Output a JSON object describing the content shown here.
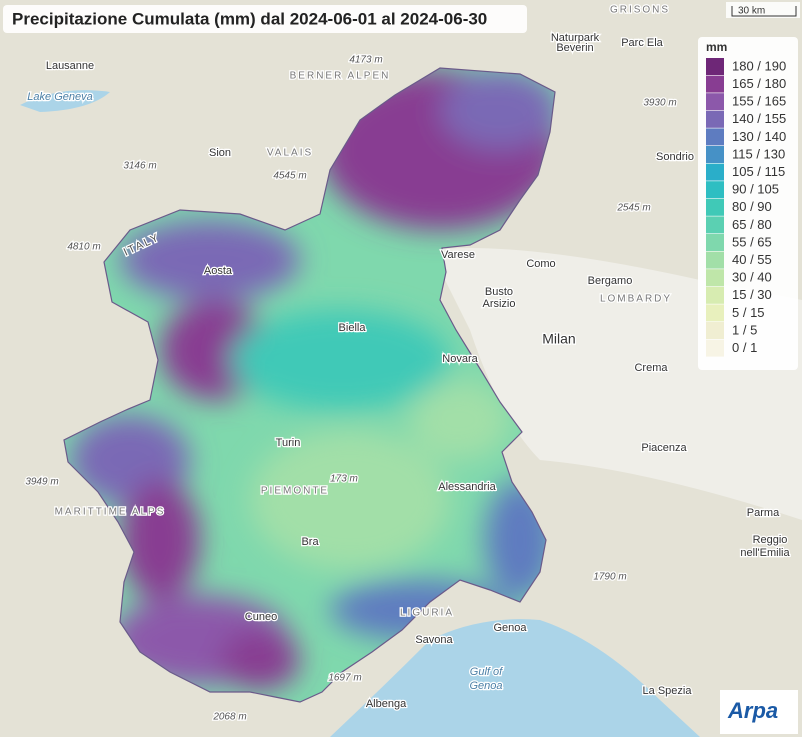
{
  "header": {
    "title": "Precipitazione Cumulata (mm) dal 2024-06-01 al 2024-06-30"
  },
  "scale": {
    "label": "30 km"
  },
  "legend": {
    "title": "mm",
    "items": [
      {
        "label": "180 / 190",
        "color": "#6e2777"
      },
      {
        "label": "165 / 180",
        "color": "#883d92"
      },
      {
        "label": "155 / 165",
        "color": "#8c58aa"
      },
      {
        "label": "140 / 155",
        "color": "#7a69b5"
      },
      {
        "label": "130 / 140",
        "color": "#5e7cc0"
      },
      {
        "label": "115 / 130",
        "color": "#4691c6"
      },
      {
        "label": "105 / 115",
        "color": "#2aaec9"
      },
      {
        "label": "90 / 105",
        "color": "#2ebec2"
      },
      {
        "label": "80 / 90",
        "color": "#40c9b7"
      },
      {
        "label": "65 / 80",
        "color": "#5bd0b2"
      },
      {
        "label": "55 / 65",
        "color": "#7fd8ad"
      },
      {
        "label": "40 / 55",
        "color": "#a2dfa8"
      },
      {
        "label": "30 / 40",
        "color": "#bfe6a9"
      },
      {
        "label": "15 / 30",
        "color": "#d7ecb1"
      },
      {
        "label": "5 / 15",
        "color": "#e8f0bd"
      },
      {
        "label": "1 / 5",
        "color": "#f0eed2"
      },
      {
        "label": "0 / 1",
        "color": "#f7f4e5"
      }
    ]
  },
  "map_labels": [
    "Lausanne",
    "Lake Geneva",
    "BERNER ALPEN",
    "4173 m",
    "Sion",
    "VALAIS",
    "3146 m",
    "4545 m",
    "4810 m",
    "ITALY",
    "Aosta",
    "Biella",
    "Novara",
    "Varese",
    "Como",
    "Bergamo",
    "Busto",
    "Arsizio",
    "LOMBARDY",
    "Milan",
    "Crema",
    "Piacenza",
    "Turin",
    "PIEMONTE",
    "173 m",
    "Alessandria",
    "Bra",
    "Cuneo",
    "LIGURIA",
    "Savona",
    "Genoa",
    "Gulf of",
    "Genoa",
    "Albenga",
    "1697 m",
    "2068 m",
    "1790 m",
    "Parma",
    "Reggio",
    "nell'Emilia",
    "La Spezia",
    "Sondrio",
    "GRISONS",
    "Parc Ela",
    "Naturpark",
    "Beverin",
    "3930 m",
    "2545 m",
    "MARITTIME ALPS",
    "3949 m"
  ],
  "logo": {
    "text": "Arpa"
  }
}
